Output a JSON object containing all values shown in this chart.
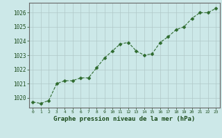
{
  "x": [
    0,
    1,
    2,
    3,
    4,
    5,
    6,
    7,
    8,
    9,
    10,
    11,
    12,
    13,
    14,
    15,
    16,
    17,
    18,
    19,
    20,
    21,
    22,
    23
  ],
  "y": [
    1019.7,
    1019.6,
    1019.8,
    1021.0,
    1021.2,
    1021.2,
    1021.4,
    1021.4,
    1022.1,
    1022.8,
    1023.3,
    1023.8,
    1023.9,
    1023.3,
    1023.0,
    1023.1,
    1023.9,
    1024.3,
    1024.8,
    1025.0,
    1025.6,
    1026.0,
    1026.0,
    1026.3
  ],
  "line_color": "#2d6a2d",
  "marker": "D",
  "marker_size": 2.5,
  "bg_color": "#cce8e8",
  "grid_color": "#b0c8c8",
  "xlabel": "Graphe pression niveau de la mer (hPa)",
  "xlabel_color": "#1a3a1a",
  "ylim": [
    1019.3,
    1026.7
  ],
  "yticks": [
    1020,
    1021,
    1022,
    1023,
    1024,
    1025,
    1026
  ],
  "xticks": [
    0,
    1,
    2,
    3,
    4,
    5,
    6,
    7,
    8,
    9,
    10,
    11,
    12,
    13,
    14,
    15,
    16,
    17,
    18,
    19,
    20,
    21,
    22,
    23
  ],
  "xtick_labels": [
    "0",
    "1",
    "2",
    "3",
    "4",
    "5",
    "6",
    "7",
    "8",
    "9",
    "10",
    "11",
    "12",
    "13",
    "14",
    "15",
    "16",
    "17",
    "18",
    "19",
    "20",
    "21",
    "22",
    "23"
  ],
  "title_color": "#1a4a1a",
  "font_family": "monospace"
}
